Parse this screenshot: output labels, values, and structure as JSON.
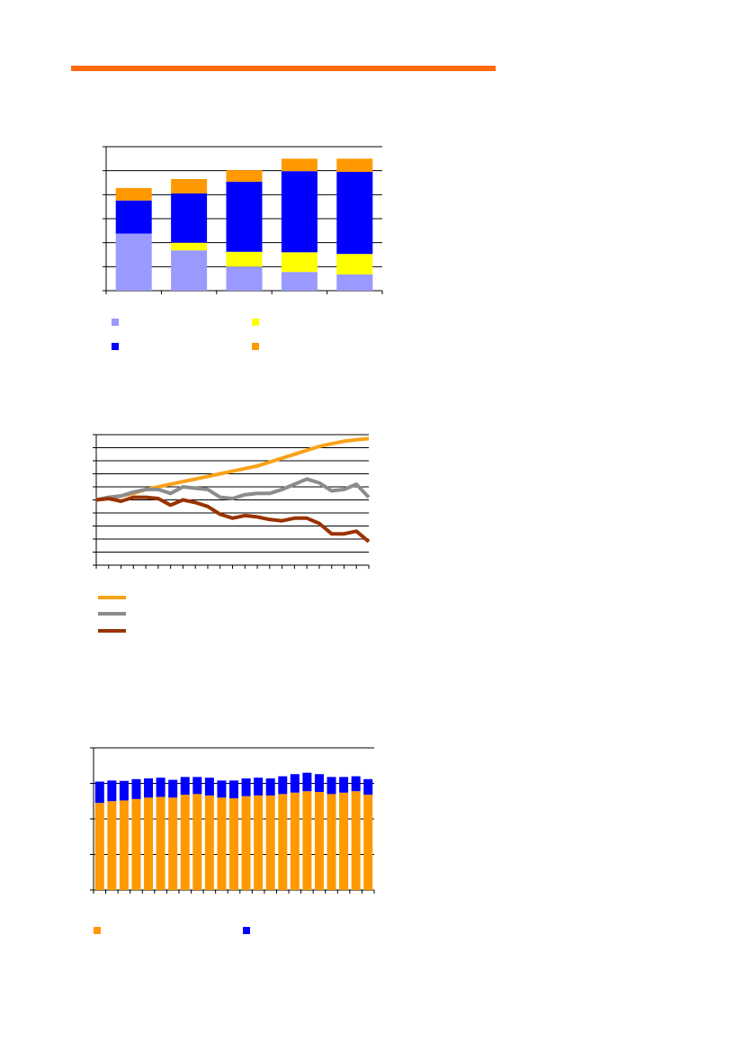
{
  "colors": {
    "rule": "#ff6a0d",
    "light_blue": "#9999ff",
    "yellow": "#ffff00",
    "blue": "#0000ff",
    "orange": "#ff9900",
    "line_orange": "#f8a21a",
    "line_gray": "#8c8c8c",
    "line_brown": "#993300",
    "axis": "#000000"
  },
  "chart_data": [
    {
      "type": "bar",
      "stacked": true,
      "title": "",
      "categories": [
        "",
        "",
        "",
        "",
        ""
      ],
      "ylim": [
        0,
        6
      ],
      "yticks": [
        0,
        1,
        2,
        3,
        4,
        5,
        6
      ],
      "grid": true,
      "legend": "bottom",
      "series": [
        {
          "name": "",
          "color": "#9999ff",
          "values": [
            2.38,
            1.68,
            1.0,
            0.78,
            0.68
          ]
        },
        {
          "name": "",
          "color": "#ffff00",
          "values": [
            0.0,
            0.32,
            0.62,
            0.82,
            0.85
          ]
        },
        {
          "name": "",
          "color": "#0000ff",
          "values": [
            1.38,
            2.05,
            2.92,
            3.38,
            3.42
          ]
        },
        {
          "name": "",
          "color": "#ff9900",
          "values": [
            0.52,
            0.6,
            0.48,
            0.52,
            0.55
          ]
        }
      ]
    },
    {
      "type": "line",
      "title": "",
      "x": [
        0,
        1,
        2,
        3,
        4,
        5,
        6,
        7,
        8,
        9,
        10,
        11,
        12,
        13,
        14,
        15,
        16,
        17,
        18,
        19,
        20,
        21,
        22
      ],
      "ylim": [
        0,
        10
      ],
      "yticks": [
        0,
        1,
        2,
        3,
        4,
        5,
        6,
        7,
        8,
        9,
        10
      ],
      "grid": true,
      "legend": "bottom",
      "series": [
        {
          "name": "",
          "color": "#f8a21a",
          "values": [
            5.0,
            5.1,
            5.3,
            5.5,
            5.8,
            6.0,
            6.2,
            6.4,
            6.6,
            6.8,
            7.0,
            7.2,
            7.4,
            7.6,
            7.9,
            8.2,
            8.5,
            8.8,
            9.1,
            9.3,
            9.5,
            9.6,
            9.7
          ]
        },
        {
          "name": "",
          "color": "#8c8c8c",
          "values": [
            5.0,
            5.2,
            5.3,
            5.6,
            5.8,
            5.8,
            5.5,
            6.0,
            5.9,
            5.8,
            5.2,
            5.1,
            5.4,
            5.5,
            5.5,
            5.8,
            6.2,
            6.6,
            6.3,
            5.7,
            5.8,
            6.2,
            5.2
          ]
        },
        {
          "name": "",
          "color": "#993300",
          "values": [
            5.0,
            5.1,
            4.9,
            5.2,
            5.2,
            5.1,
            4.6,
            5.0,
            4.8,
            4.5,
            3.9,
            3.6,
            3.8,
            3.7,
            3.5,
            3.4,
            3.6,
            3.6,
            3.2,
            2.4,
            2.4,
            2.6,
            1.8
          ]
        }
      ]
    },
    {
      "type": "bar",
      "stacked": true,
      "title": "",
      "categories": [
        "",
        "",
        "",
        "",
        "",
        "",
        "",
        "",
        "",
        "",
        "",
        "",
        "",
        "",
        "",
        "",
        "",
        "",
        "",
        "",
        "",
        "",
        ""
      ],
      "ylim": [
        0,
        4
      ],
      "yticks": [
        0,
        1,
        2,
        3,
        4
      ],
      "grid": true,
      "legend": "bottom",
      "series": [
        {
          "name": "",
          "color": "#ff9900",
          "values": [
            2.45,
            2.5,
            2.52,
            2.56,
            2.6,
            2.62,
            2.6,
            2.68,
            2.7,
            2.66,
            2.6,
            2.58,
            2.64,
            2.66,
            2.66,
            2.7,
            2.74,
            2.78,
            2.76,
            2.7,
            2.74,
            2.78,
            2.68
          ]
        },
        {
          "name": "",
          "color": "#0000ff",
          "values": [
            0.6,
            0.58,
            0.55,
            0.56,
            0.54,
            0.54,
            0.5,
            0.5,
            0.48,
            0.5,
            0.48,
            0.5,
            0.5,
            0.5,
            0.48,
            0.5,
            0.52,
            0.52,
            0.5,
            0.48,
            0.44,
            0.42,
            0.44
          ]
        }
      ]
    }
  ]
}
